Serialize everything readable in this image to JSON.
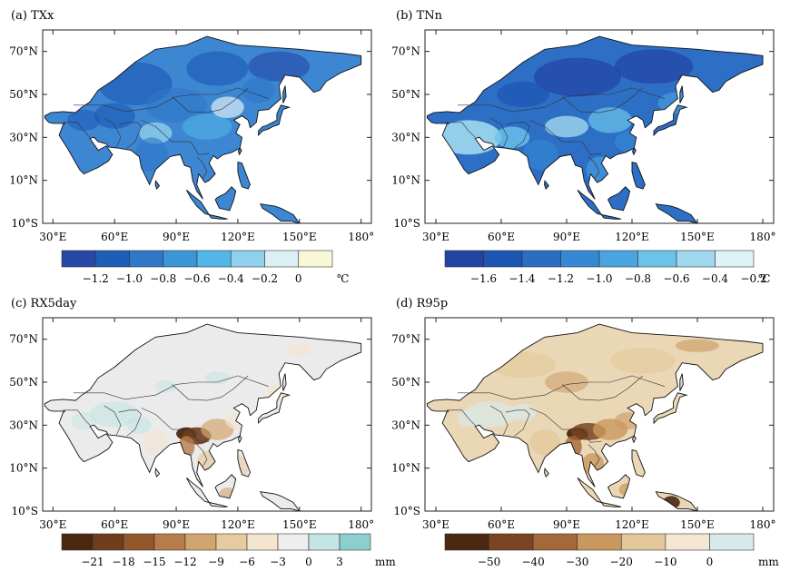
{
  "figure": {
    "lat_ticks": [
      "70°N",
      "50°N",
      "30°N",
      "10°N",
      "10°S"
    ],
    "lon_ticks": [
      "30°E",
      "60°E",
      "90°E",
      "120°E",
      "150°E",
      "180°"
    ]
  },
  "chart_data": [
    {
      "type": "heatmap",
      "title": "(a) TXx",
      "variable": "TXx",
      "map_region": "Asia",
      "xlim": [
        25,
        185
      ],
      "ylim": [
        -10,
        80
      ],
      "colorbar": {
        "colors": [
          "#2747a6",
          "#1f5eb7",
          "#2f78c8",
          "#3b95d8",
          "#52b6e6",
          "#8fd0ea",
          "#dbf0f5",
          "#f8f7d6"
        ],
        "tick_labels": [
          "−1.2",
          "−1.0",
          "−0.8",
          "−0.6",
          "−0.4",
          "−0.2",
          "0"
        ],
        "unit": "℃"
      },
      "land_color": "#3d86d2"
    },
    {
      "type": "heatmap",
      "title": "(b) TNn",
      "variable": "TNn",
      "map_region": "Asia",
      "xlim": [
        25,
        185
      ],
      "ylim": [
        -10,
        80
      ],
      "colorbar": {
        "colors": [
          "#2343a3",
          "#1d56b2",
          "#2a6dc3",
          "#3588d3",
          "#4aa4df",
          "#6cc3ea",
          "#9fd8ee",
          "#dff2f8"
        ],
        "tick_labels": [
          "−1.6",
          "−1.4",
          "−1.2",
          "−1.0",
          "−0.8",
          "−0.6",
          "−0.4",
          "−0.2"
        ],
        "unit": "℃"
      },
      "land_color": "#2e6fc6"
    },
    {
      "type": "heatmap",
      "title": "(c) RX5day",
      "variable": "RX5day",
      "map_region": "Asia",
      "xlim": [
        25,
        185
      ],
      "ylim": [
        -10,
        80
      ],
      "colorbar": {
        "colors": [
          "#4a2810",
          "#6e3d1c",
          "#93572b",
          "#b57d4a",
          "#d1a56f",
          "#e7cba0",
          "#f3e5cf",
          "#eeeeee",
          "#c3e5e4",
          "#8dcfcf"
        ],
        "tick_labels": [
          "−21",
          "−18",
          "−15",
          "−12",
          "−9",
          "−6",
          "−3",
          "0",
          "3"
        ],
        "unit": "mm"
      },
      "land_color": "#ebebeb"
    },
    {
      "type": "heatmap",
      "title": "(d) R95p",
      "variable": "R95p",
      "map_region": "Asia",
      "xlim": [
        25,
        185
      ],
      "ylim": [
        -10,
        80
      ],
      "colorbar": {
        "colors": [
          "#4a2810",
          "#7a4422",
          "#a4683a",
          "#c9985f",
          "#e3c89a",
          "#f3e6d2",
          "#d9e9ea"
        ],
        "tick_labels": [
          "−50",
          "−40",
          "−30",
          "−20",
          "−10",
          "0"
        ],
        "unit": "mm"
      },
      "land_color": "#ead7b6"
    }
  ]
}
